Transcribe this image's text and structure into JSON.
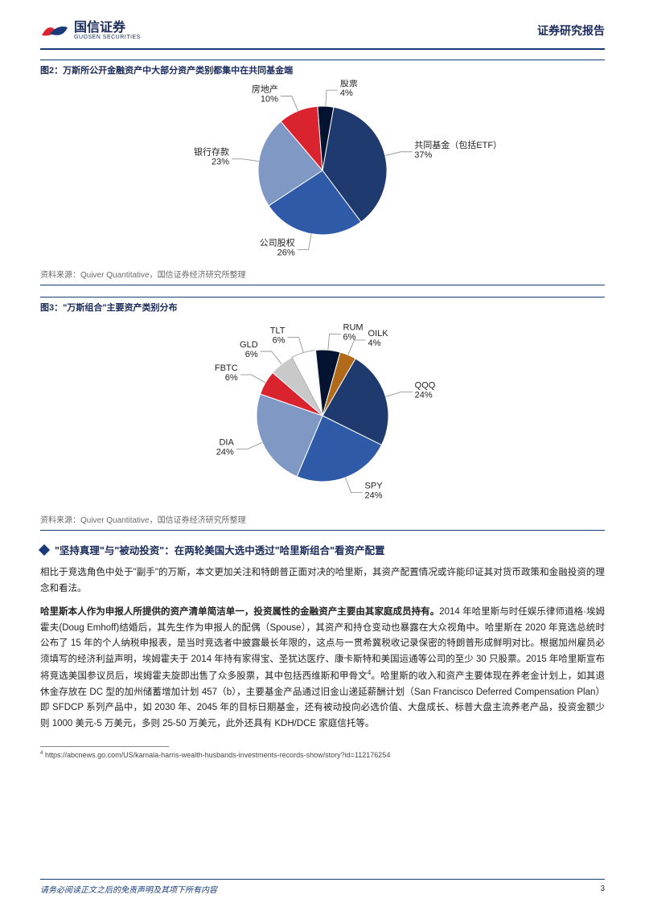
{
  "header": {
    "company_cn": "国信证券",
    "company_en": "GUOSEN SECURITIES",
    "report_type": "证券研究报告",
    "logo_colors": {
      "red": "#d9232e",
      "blue": "#1a3b7a"
    }
  },
  "figure2": {
    "title": "图2：万斯所公开金融资产中大部分资产类别都集中在共同基金端",
    "source": "资料来源：Quiver Quantitative，国信证券经济研究所整理",
    "chart": {
      "type": "pie",
      "background_color": "#ffffff",
      "label_fontsize": 11,
      "slices": [
        {
          "name": "共同基金（包括ETF）",
          "pct": 37,
          "color": "#1f3a6e",
          "label": "共同基金（包括ETF）\n37%"
        },
        {
          "name": "公司股权",
          "pct": 26,
          "color": "#2f5aa8",
          "label": "公司股权\n26%"
        },
        {
          "name": "银行存款",
          "pct": 23,
          "color": "#7f98c4",
          "label": "银行存款\n23%"
        },
        {
          "name": "房地产",
          "pct": 10,
          "color": "#d9232e",
          "label": "房地产\n10%"
        },
        {
          "name": "股票",
          "pct": 4,
          "color": "#041430",
          "label": "股票\n4%"
        }
      ]
    }
  },
  "figure3": {
    "title": "图3：\"万斯组合\"主要资产类别分布",
    "source": "资料来源：Quiver Quantitative，国信证券经济研究所整理",
    "chart": {
      "type": "pie",
      "background_color": "#ffffff",
      "label_fontsize": 11,
      "slices": [
        {
          "name": "QQQ",
          "pct": 24,
          "color": "#1f3a6e",
          "label": "QQQ\n24%"
        },
        {
          "name": "SPY",
          "pct": 24,
          "color": "#2f5aa8",
          "label": "SPY\n24%"
        },
        {
          "name": "DIA",
          "pct": 24,
          "color": "#7f98c4",
          "label": "DIA\n24%"
        },
        {
          "name": "FBTC",
          "pct": 6,
          "color": "#d9232e",
          "label": "FBTC\n6%"
        },
        {
          "name": "GLD",
          "pct": 6,
          "color": "#c9c9c9",
          "label": "GLD\n6%"
        },
        {
          "name": "TLT",
          "pct": 6,
          "color": "#ffffff",
          "stroke": "#aaaaaa",
          "label": "TLT\n6%"
        },
        {
          "name": "RUM",
          "pct": 6,
          "color": "#041430",
          "label": "RUM\n6%"
        },
        {
          "name": "OILK",
          "pct": 4,
          "color": "#b06a1a",
          "label": "OILK\n4%"
        }
      ]
    }
  },
  "section": {
    "heading": "\"坚持真理\"与\"被动投资\"：在两轮美国大选中透过\"哈里斯组合\"看资产配置",
    "para1": "相比于竞选角色中处于\"副手\"的万斯，本文更加关注和特朗普正面对决的哈里斯，其资产配置情况或许能印证其对货币政策和金融投资的理念和看法。",
    "para2_bold": "哈里斯本人作为申报人所提供的资产清单简洁单一，投资属性的金融资产主要由其家庭成员持有。",
    "para2_rest": "2014 年哈里斯与时任娱乐律师道格·埃姆霍夫(Doug Emhoff)结婚后，其先生作为申报人的配偶（Spouse），其资产和持仓变动也暴露在大众视角中。哈里斯在 2020 年竞选总统时公布了 15 年的个人纳税申报表，是当时竞选者中披露最长年限的，这点与一贯希冀税收记录保密的特朗普形成鲜明对比。根据加州雇员必须填写的经济利益声明，埃姆霍夫于 2014 年持有家得宝、圣犹达医疗、康卡斯特和美国运通等公司的至少 30 只股票。2015 年哈里斯宣布将竞选美国参议员后，埃姆霍夫旋即出售了众多股票，其中包括西维斯和甲骨文",
    "para2_sup": "4",
    "para2_tail": "。哈里斯的收入和资产主要体现在养老金计划上，如其退休金存放在 DC 型的加州储蓄增加计划 457（b），主要基金产品通过旧金山递延薪酬计划（San Francisco Deferred Compensation Plan）即 SFDCP 系列产品中，如 2030 年、2045 年的目标日期基金，还有被动投向必选价值、大盘成长、标普大盘主流养老产品，投资金额少则 1000 美元-5 万美元，多则 25-50 万美元，此外还具有 KDH/DCE 家庭信托等。"
  },
  "footnote": {
    "marker": "4",
    "text": "https://abcnews.go.com/US/kamala-harris-wealth-husbands-investments-records-show/story?id=112176254"
  },
  "footer": {
    "disclaimer": "请务必阅读正文之后的免责声明及其项下所有内容",
    "page": "3"
  }
}
